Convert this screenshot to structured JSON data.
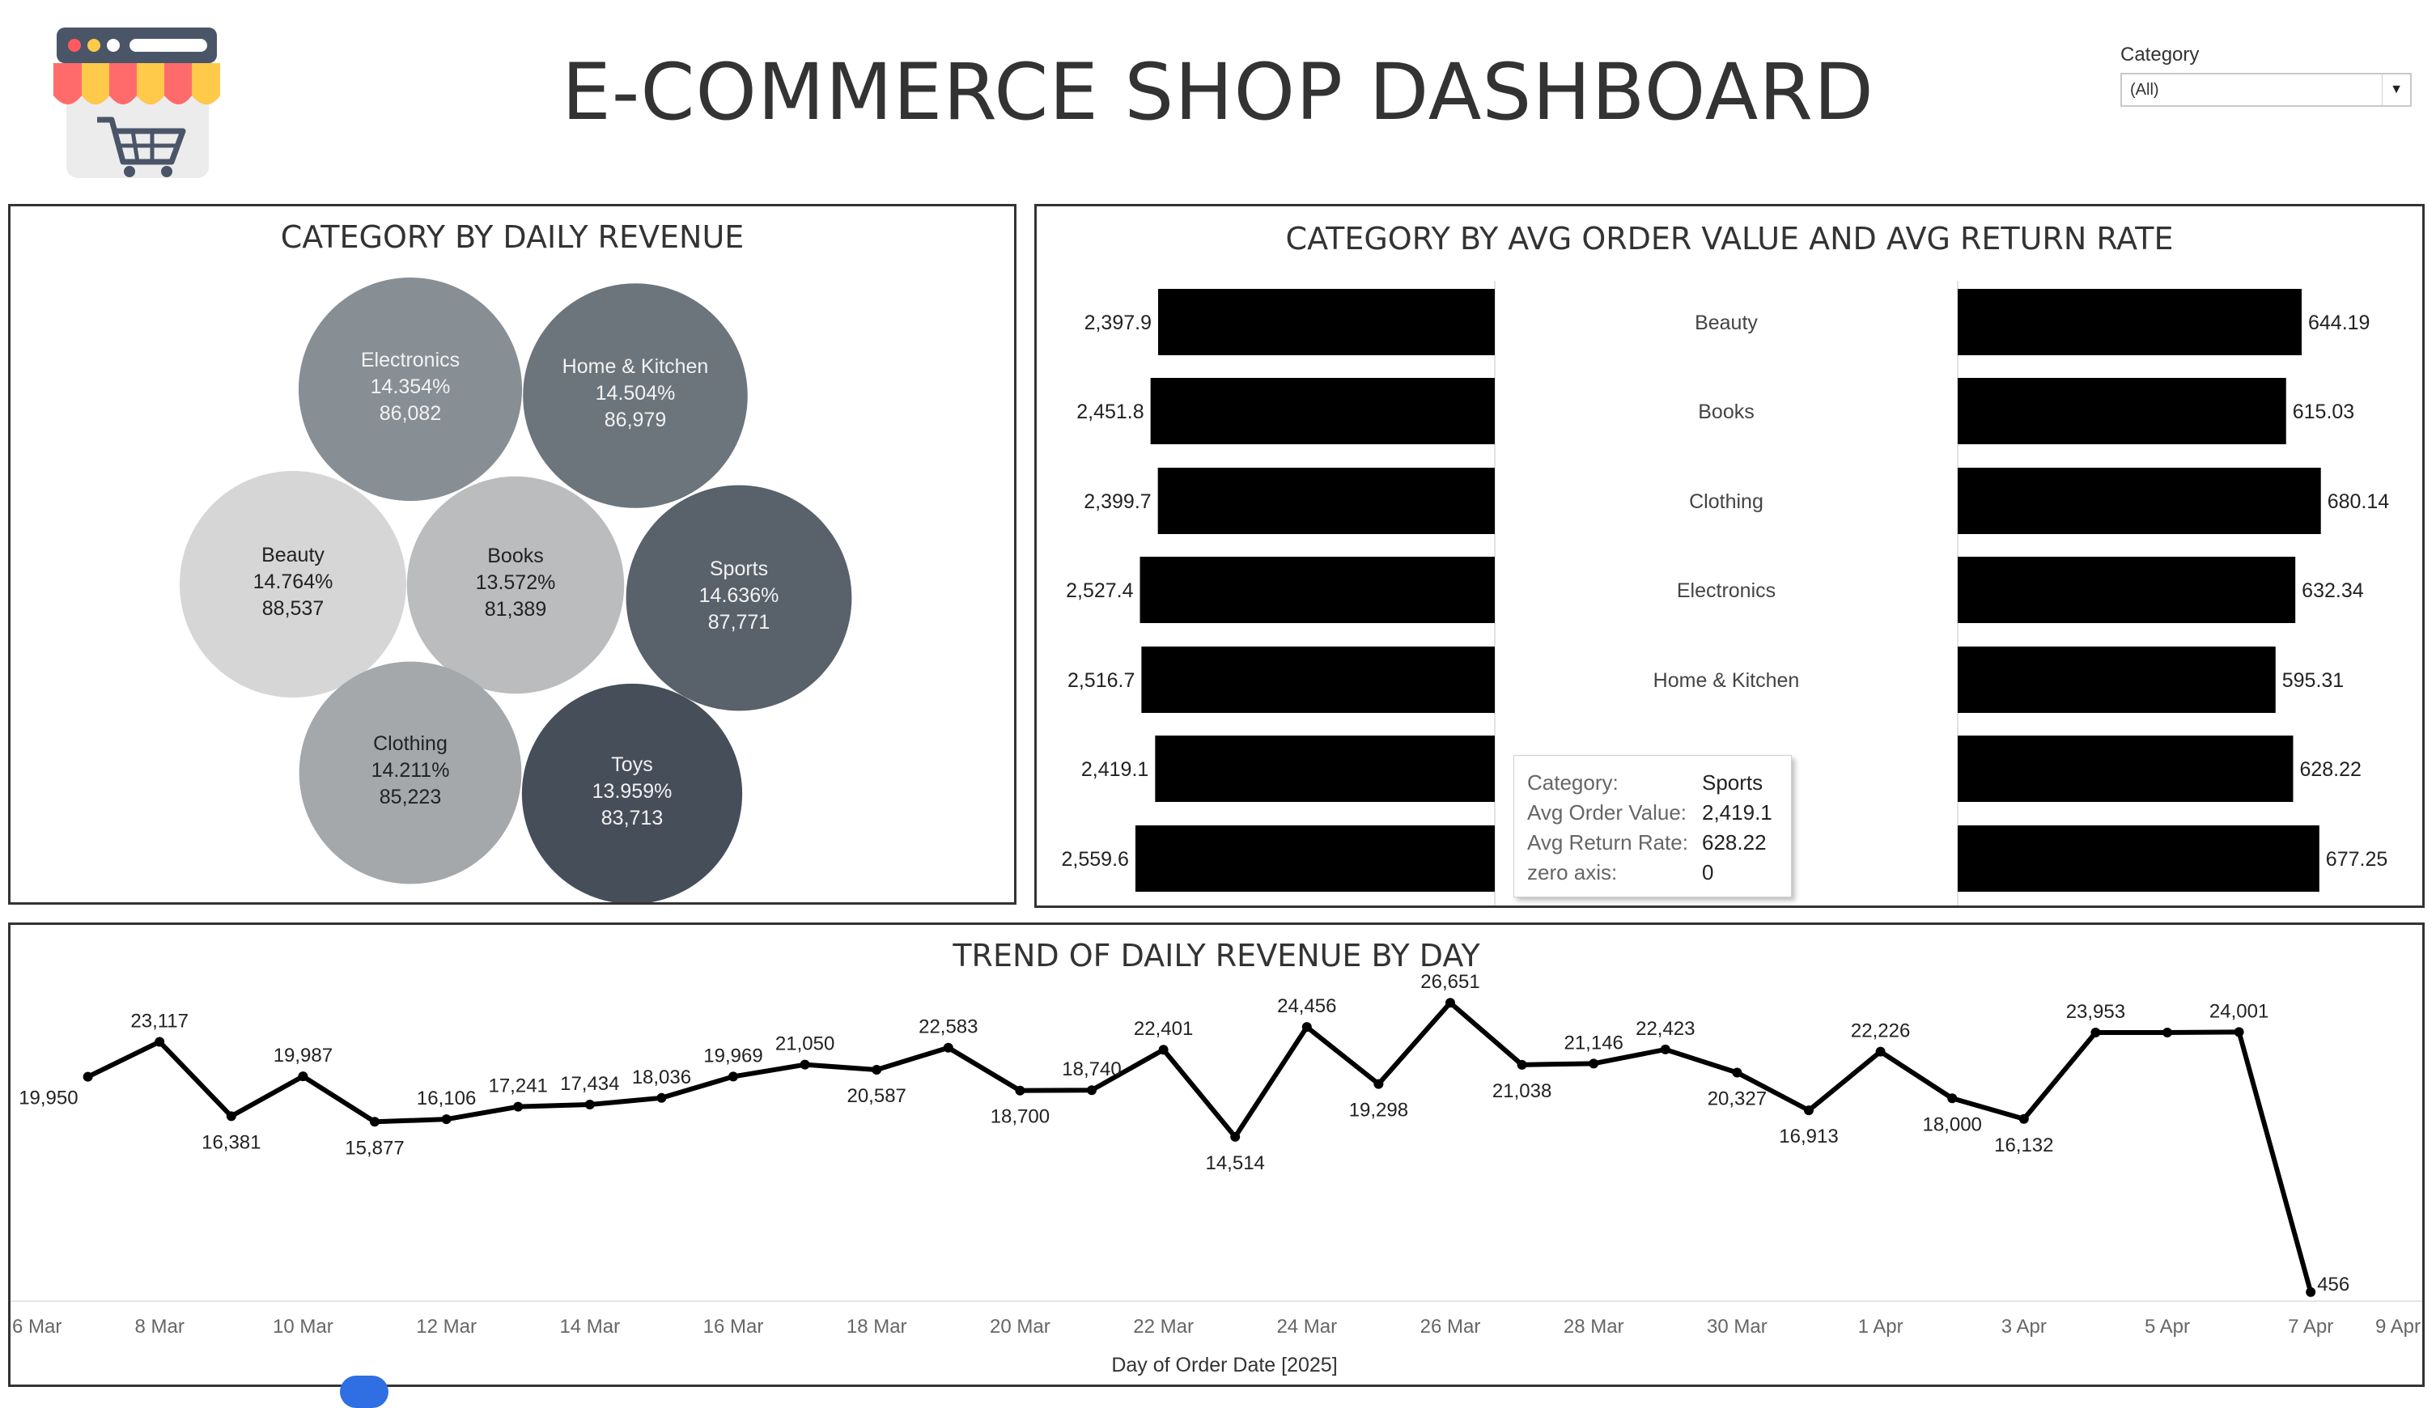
{
  "header": {
    "title": "E-COMMERCE SHOP DASHBOARD",
    "logo_icon": "shop-cart-icon"
  },
  "filter": {
    "label": "Category",
    "value": "(All)"
  },
  "panels": {
    "bubble_title": "CATEGORY BY DAILY REVENUE",
    "bars_title": "CATEGORY BY AVG ORDER VALUE AND AVG RETURN RATE",
    "trend_title": "TREND OF DAILY REVENUE BY DAY"
  },
  "tooltip": {
    "rows": [
      {
        "key": "Category:",
        "value": "Sports"
      },
      {
        "key": "Avg Order Value:",
        "value": "2,419.1"
      },
      {
        "key": "Avg Return Rate:",
        "value": "628.22"
      },
      {
        "key": "zero axis:",
        "value": "0"
      }
    ]
  },
  "chart_data": [
    {
      "type": "bubble",
      "title": "CATEGORY BY DAILY REVENUE",
      "items": [
        {
          "category": "Electronics",
          "percent": "14.354%",
          "value": 86082,
          "label": "86,082",
          "color": "#878e94"
        },
        {
          "category": "Home & Kitchen",
          "percent": "14.504%",
          "value": 86979,
          "label": "86,979",
          "color": "#6c747c"
        },
        {
          "category": "Beauty",
          "percent": "14.764%",
          "value": 88537,
          "label": "88,537",
          "color": "#d6d6d6"
        },
        {
          "category": "Books",
          "percent": "13.572%",
          "value": 81389,
          "label": "81,389",
          "color": "#bbbcbd"
        },
        {
          "category": "Sports",
          "percent": "14.636%",
          "value": 87771,
          "label": "87,771",
          "color": "#59616b"
        },
        {
          "category": "Clothing",
          "percent": "14.211%",
          "value": 85223,
          "label": "85,223",
          "color": "#a4a8ab"
        },
        {
          "category": "Toys",
          "percent": "13.959%",
          "value": 83713,
          "label": "83,713",
          "color": "#464e5a"
        }
      ]
    },
    {
      "type": "bar",
      "title": "CATEGORY BY AVG ORDER VALUE AND AVG RETURN RATE",
      "categories": [
        "Beauty",
        "Books",
        "Clothing",
        "Electronics",
        "Home & Kitchen",
        "",
        ""
      ],
      "series": [
        {
          "values": [
            2397.9,
            2451.8,
            2399.7,
            2527.4,
            2516.7,
            2419.1,
            2559.6
          ],
          "labels": [
            "2,397.9",
            "2,451.8",
            "2,399.7",
            "2,527.4",
            "2,516.7",
            "2,419.1",
            "2,559.6"
          ]
        },
        {
          "values": [
            644.19,
            615.03,
            680.14,
            632.34,
            595.31,
            628.22,
            677.25
          ],
          "labels": [
            "644.19",
            "615.03",
            "680.14",
            "632.34",
            "595.31",
            "628.22",
            "677.25"
          ]
        }
      ],
      "bar_color": "#000000"
    },
    {
      "type": "line",
      "title": "TREND OF DAILY REVENUE BY DAY",
      "xlabel": "Day of Order Date [2025]",
      "x_ticks": [
        "6 Mar",
        "8 Mar",
        "10 Mar",
        "12 Mar",
        "14 Mar",
        "16 Mar",
        "18 Mar",
        "20 Mar",
        "22 Mar",
        "24 Mar",
        "26 Mar",
        "28 Mar",
        "30 Mar",
        "1 Apr",
        "3 Apr",
        "5 Apr",
        "7 Apr",
        "9 Apr"
      ],
      "x": [
        "2025-03-07",
        "2025-03-08",
        "2025-03-09",
        "2025-03-10",
        "2025-03-11",
        "2025-03-12",
        "2025-03-13",
        "2025-03-14",
        "2025-03-15",
        "2025-03-16",
        "2025-03-17",
        "2025-03-18",
        "2025-03-19",
        "2025-03-20",
        "2025-03-21",
        "2025-03-22",
        "2025-03-23",
        "2025-03-24",
        "2025-03-25",
        "2025-03-26",
        "2025-03-27",
        "2025-03-28",
        "2025-03-29",
        "2025-03-30",
        "2025-03-31",
        "2025-04-01",
        "2025-04-02",
        "2025-04-03",
        "2025-04-04",
        "2025-04-05",
        "2025-04-06",
        "2025-04-07"
      ],
      "values": [
        19950,
        23117,
        16381,
        19987,
        15877,
        16106,
        17241,
        17434,
        18036,
        19969,
        21050,
        20587,
        22583,
        18700,
        18740,
        22401,
        14514,
        24456,
        19298,
        26651,
        21038,
        21146,
        22423,
        20327,
        16913,
        22226,
        18000,
        16132,
        23953,
        23953,
        24001,
        456
      ],
      "labels": [
        "19,950",
        "23,117",
        "16,381",
        "19,987",
        "15,877",
        "16,106",
        "17,241",
        "17,434",
        "18,036",
        "19,969",
        "21,050",
        "20,587",
        "22,583",
        "18,700",
        "18,740",
        "22,401",
        "14,514",
        "24,456",
        "19,298",
        "26,651",
        "21,038",
        "21,146",
        "22,423",
        "20,327",
        "16,913",
        "22,226",
        "18,000",
        "16,132",
        "23,953",
        "",
        "24,001",
        "456"
      ],
      "line_color": "#000000"
    }
  ]
}
